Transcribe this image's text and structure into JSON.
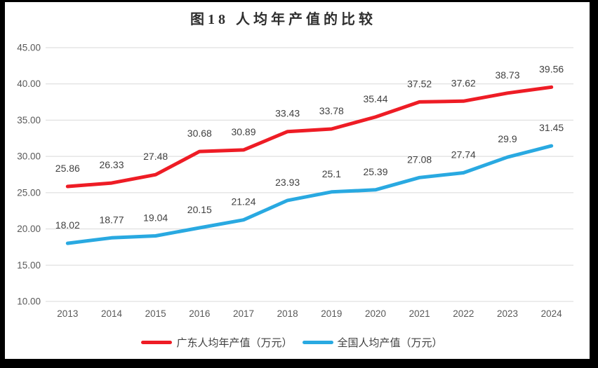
{
  "title": "图18 人均年产值的比较",
  "chart_data": {
    "type": "line",
    "title": "图18 人均年产值的比较",
    "categories": [
      "2013",
      "2014",
      "2015",
      "2016",
      "2017",
      "2018",
      "2019",
      "2020",
      "2021",
      "2022",
      "2023",
      "2024"
    ],
    "series": [
      {
        "name": "广东人均年产值（万元）",
        "color": "#ee1c25",
        "values": [
          25.86,
          26.33,
          27.48,
          30.68,
          30.89,
          33.43,
          33.78,
          35.44,
          37.52,
          37.62,
          38.73,
          39.56
        ],
        "labels": [
          "25.86",
          "26.33",
          "27.48",
          "30.68",
          "30.89",
          "33.43",
          "33.78",
          "35.44",
          "37.52",
          "37.62",
          "38.73",
          "39.56"
        ]
      },
      {
        "name": "全国人均产值（万元）",
        "color": "#29a9e1",
        "values": [
          18.02,
          18.77,
          19.04,
          20.15,
          21.24,
          23.93,
          25.1,
          25.39,
          27.08,
          27.74,
          29.9,
          31.45
        ],
        "labels": [
          "18.02",
          "18.77",
          "19.04",
          "20.15",
          "21.24",
          "23.93",
          "25.1",
          "25.39",
          "27.08",
          "27.74",
          "29.9",
          "31.45"
        ]
      }
    ],
    "ylim": [
      10,
      45
    ],
    "ytick_step": 5,
    "ytick_labels": [
      "10.00",
      "15.00",
      "20.00",
      "25.00",
      "30.00",
      "35.00",
      "40.00",
      "45.00"
    ],
    "grid": true,
    "legend_position": "bottom",
    "grid_color": "#d9d9d9",
    "tick_color": "#595959",
    "data_label_color": "#404040",
    "background": "#ffffff",
    "frame_color": "#000000"
  }
}
